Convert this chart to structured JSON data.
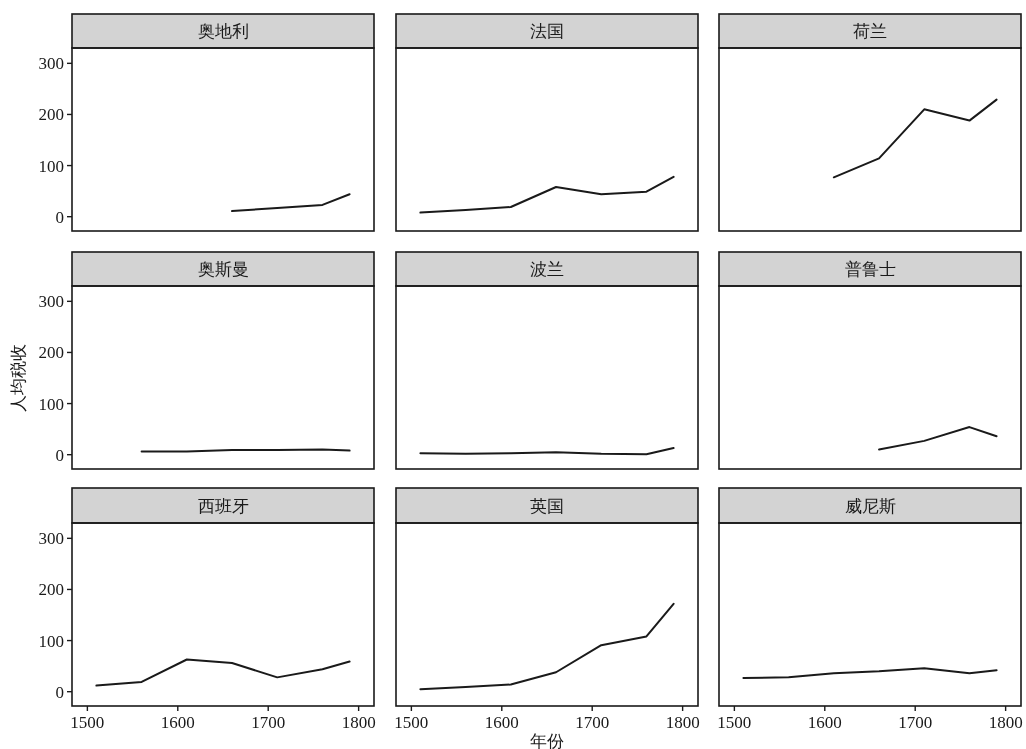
{
  "chart_data": [
    {
      "type": "line",
      "title": "奥地利",
      "x": [
        1660,
        1710,
        1760,
        1790
      ],
      "values": [
        11,
        17,
        23,
        44
      ],
      "color": "#1a1a1a",
      "xlim": [
        1483,
        1817
      ],
      "ylim": [
        -28,
        330
      ],
      "yticks": [
        0,
        100,
        200,
        300
      ],
      "tick_labels": "y"
    },
    {
      "type": "line",
      "title": "法国",
      "x": [
        1510,
        1560,
        1610,
        1660,
        1710,
        1760,
        1790
      ],
      "values": [
        8,
        13,
        19,
        58,
        44,
        49,
        78
      ],
      "color": "#1a1a1a",
      "xlim": [
        1483,
        1817
      ],
      "ylim": [
        -28,
        330
      ],
      "tick_labels": false
    },
    {
      "type": "line",
      "title": "荷兰",
      "x": [
        1610,
        1660,
        1710,
        1760,
        1790
      ],
      "values": [
        77,
        114,
        210,
        188,
        229
      ],
      "color": "#1a1a1a",
      "xlim": [
        1483,
        1817
      ],
      "ylim": [
        -28,
        330
      ],
      "tick_labels": false
    },
    {
      "type": "line",
      "title": "奥斯曼",
      "ylabel": "人均税收",
      "x": [
        1560,
        1610,
        1660,
        1710,
        1760,
        1790
      ],
      "values": [
        6,
        6,
        9,
        9,
        10,
        8
      ],
      "color": "#1a1a1a",
      "xlim": [
        1483,
        1817
      ],
      "ylim": [
        -28,
        330
      ],
      "yticks": [
        0,
        100,
        200,
        300
      ],
      "tick_labels": "y"
    },
    {
      "type": "line",
      "title": "波兰",
      "x": [
        1510,
        1560,
        1610,
        1660,
        1710,
        1760,
        1790
      ],
      "values": [
        3,
        2,
        3,
        5,
        2,
        1,
        13
      ],
      "color": "#1a1a1a",
      "xlim": [
        1483,
        1817
      ],
      "ylim": [
        -28,
        330
      ],
      "tick_labels": false
    },
    {
      "type": "line",
      "title": "普鲁士",
      "x": [
        1660,
        1710,
        1760,
        1790
      ],
      "values": [
        10,
        27,
        54,
        36
      ],
      "color": "#1a1a1a",
      "xlim": [
        1483,
        1817
      ],
      "ylim": [
        -28,
        330
      ],
      "tick_labels": false
    },
    {
      "type": "line",
      "title": "西班牙",
      "x": [
        1510,
        1560,
        1610,
        1660,
        1710,
        1760,
        1790
      ],
      "values": [
        12,
        19,
        63,
        56,
        28,
        44,
        59
      ],
      "color": "#1a1a1a",
      "xlim": [
        1483,
        1817
      ],
      "ylim": [
        -28,
        330
      ],
      "xticks": [
        1500,
        1600,
        1700,
        1800
      ],
      "yticks": [
        0,
        100,
        200,
        300
      ]
    },
    {
      "type": "line",
      "title": "英国",
      "xlabel": "年份",
      "x": [
        1510,
        1560,
        1610,
        1660,
        1710,
        1760,
        1790
      ],
      "values": [
        5,
        9,
        14,
        38,
        91,
        108,
        172
      ],
      "color": "#1a1a1a",
      "xlim": [
        1483,
        1817
      ],
      "ylim": [
        -28,
        330
      ],
      "xticks": [
        1500,
        1600,
        1700,
        1800
      ],
      "tick_labels": "x"
    },
    {
      "type": "line",
      "title": "威尼斯",
      "x": [
        1510,
        1560,
        1610,
        1660,
        1710,
        1760,
        1790
      ],
      "values": [
        27,
        28,
        36,
        40,
        46,
        36,
        42
      ],
      "color": "#1a1a1a",
      "xlim": [
        1483,
        1817
      ],
      "ylim": [
        -28,
        330
      ],
      "xticks": [
        1500,
        1600,
        1700,
        1800
      ],
      "tick_labels": "x"
    }
  ]
}
